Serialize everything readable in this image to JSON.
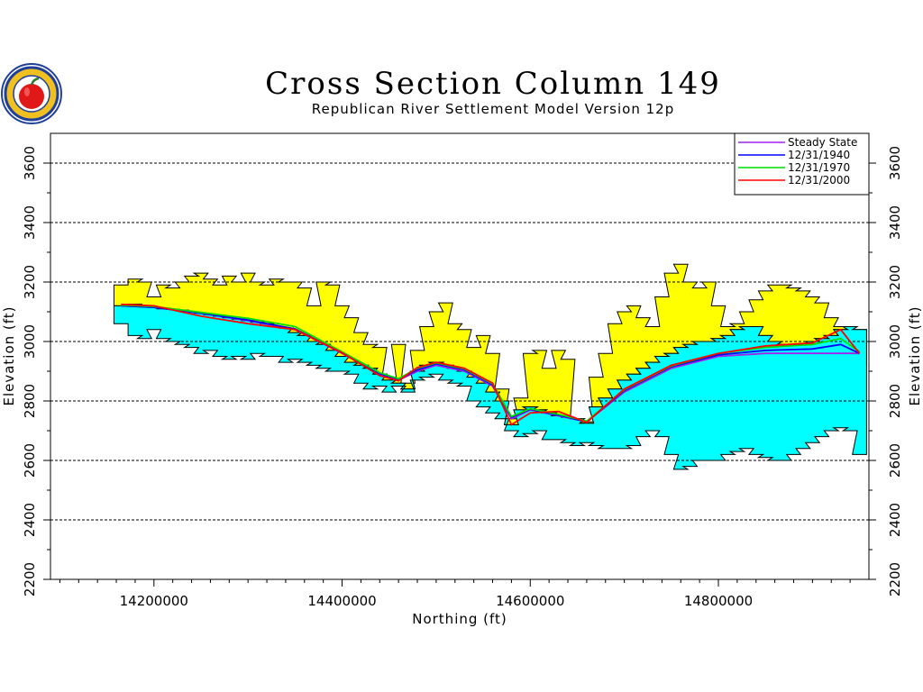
{
  "colors": {
    "aquifer_fill": "#00ffff",
    "ground_fill": "#ffff00",
    "outline": "#000000",
    "grid": "#000000",
    "steady_state": "#a020f0",
    "y1940": "#0000ff",
    "y1970": "#00dd00",
    "y2000": "#ff0000",
    "logo_blue": "#1f3f99",
    "logo_gold": "#f0c020",
    "logo_red": "#e01818"
  },
  "logo": {
    "icon": "state-seal-apple-icon"
  },
  "chart_data": {
    "type": "area",
    "title": "Cross Section Column 149",
    "subtitle": "Republican River Settlement Model Version 12p",
    "xlabel": "Northing (ft)",
    "ylabel": "Elevation (ft)",
    "ylabel_right": "Elevation (ft)",
    "xlim": [
      14090000,
      14960000
    ],
    "ylim": [
      2200,
      3700
    ],
    "x_ticks": [
      14200000,
      14400000,
      14600000,
      14800000
    ],
    "x_tick_labels": [
      "14200000",
      "14400000",
      "14600000",
      "14800000"
    ],
    "y_ticks": [
      2200,
      2400,
      2600,
      2800,
      3000,
      3200,
      3400,
      3600
    ],
    "y_tick_labels": [
      "2200",
      "2400",
      "2600",
      "2800",
      "3000",
      "3200",
      "3400",
      "3600"
    ],
    "grid": "dashed horizontal at major y ticks",
    "legend_position": "top-right",
    "layers": {
      "land_surface": {
        "x": [
          14165000,
          14180000,
          14190000,
          14200000,
          14210000,
          14220000,
          14230000,
          14240000,
          14250000,
          14260000,
          14270000,
          14280000,
          14290000,
          14300000,
          14310000,
          14320000,
          14330000,
          14340000,
          14350000,
          14360000,
          14370000,
          14380000,
          14390000,
          14400000,
          14410000,
          14420000,
          14430000,
          14440000,
          14450000,
          14460000,
          14470000,
          14480000,
          14490000,
          14500000,
          14510000,
          14520000,
          14530000,
          14540000,
          14550000,
          14560000,
          14570000,
          14580000,
          14590000,
          14600000,
          14610000,
          14620000,
          14630000,
          14640000,
          14650000,
          14660000,
          14670000,
          14680000,
          14690000,
          14700000,
          14710000,
          14720000,
          14730000,
          14740000,
          14750000,
          14760000,
          14770000,
          14780000,
          14790000,
          14800000,
          14810000,
          14820000,
          14830000,
          14840000,
          14850000,
          14860000,
          14870000,
          14880000,
          14890000,
          14900000,
          14910000,
          14920000,
          14930000,
          14940000,
          14950000
        ],
        "y": [
          3190,
          3210,
          3200,
          3150,
          3190,
          3180,
          3200,
          3220,
          3230,
          3210,
          3190,
          3220,
          3200,
          3230,
          3200,
          3190,
          3210,
          3200,
          3200,
          3180,
          3120,
          3200,
          3190,
          3120,
          3080,
          3030,
          2990,
          2980,
          2880,
          2990,
          2860,
          2970,
          3050,
          3100,
          3130,
          3060,
          3040,
          2980,
          3020,
          2960,
          2840,
          2740,
          2810,
          2960,
          2970,
          2910,
          2970,
          2940,
          2740,
          2730,
          2880,
          2960,
          3060,
          3100,
          3120,
          3080,
          3050,
          3150,
          3230,
          3260,
          3200,
          3180,
          3200,
          3120,
          3050,
          3060,
          3100,
          3140,
          3170,
          3190,
          3190,
          3180,
          3170,
          3150,
          3130,
          3080,
          3050,
          2990,
          2920
        ]
      },
      "aquifer_top": {
        "x": [
          14165000,
          14180000,
          14190000,
          14200000,
          14210000,
          14220000,
          14230000,
          14240000,
          14250000,
          14260000,
          14270000,
          14280000,
          14290000,
          14300000,
          14310000,
          14320000,
          14330000,
          14340000,
          14350000,
          14360000,
          14370000,
          14380000,
          14390000,
          14400000,
          14410000,
          14420000,
          14430000,
          14440000,
          14450000,
          14460000,
          14470000,
          14480000,
          14490000,
          14500000,
          14510000,
          14520000,
          14530000,
          14540000,
          14550000,
          14560000,
          14570000,
          14580000,
          14590000,
          14600000,
          14610000,
          14620000,
          14630000,
          14640000,
          14650000,
          14660000,
          14670000,
          14680000,
          14690000,
          14700000,
          14710000,
          14720000,
          14730000,
          14740000,
          14750000,
          14760000,
          14770000,
          14780000,
          14790000,
          14800000,
          14810000,
          14820000,
          14830000,
          14840000,
          14850000,
          14860000,
          14870000,
          14880000,
          14890000,
          14900000,
          14910000,
          14920000,
          14930000,
          14940000,
          14950000
        ],
        "y": [
          3120,
          3125,
          3120,
          3115,
          3110,
          3108,
          3105,
          3100,
          3095,
          3090,
          3085,
          3080,
          3075,
          3070,
          3065,
          3060,
          3050,
          3045,
          3030,
          3020,
          3000,
          2990,
          2970,
          2950,
          2930,
          2920,
          2910,
          2890,
          2870,
          2860,
          2840,
          2900,
          2920,
          2930,
          2920,
          2910,
          2900,
          2880,
          2860,
          2830,
          2800,
          2720,
          2770,
          2780,
          2770,
          2760,
          2750,
          2745,
          2740,
          2725,
          2780,
          2810,
          2840,
          2870,
          2890,
          2910,
          2930,
          2950,
          2960,
          2980,
          2990,
          3000,
          3000,
          3010,
          3020,
          3040,
          3050,
          3050,
          3020,
          3000,
          2990,
          2990,
          2990,
          3000,
          3010,
          3020,
          3040,
          3050,
          3040
        ]
      },
      "aquifer_bottom": {
        "x": [
          14165000,
          14180000,
          14190000,
          14200000,
          14210000,
          14220000,
          14230000,
          14240000,
          14250000,
          14260000,
          14270000,
          14280000,
          14290000,
          14300000,
          14310000,
          14320000,
          14330000,
          14340000,
          14350000,
          14360000,
          14370000,
          14380000,
          14390000,
          14400000,
          14410000,
          14420000,
          14430000,
          14440000,
          14450000,
          14460000,
          14470000,
          14480000,
          14490000,
          14500000,
          14510000,
          14520000,
          14530000,
          14540000,
          14550000,
          14560000,
          14570000,
          14580000,
          14590000,
          14600000,
          14610000,
          14620000,
          14630000,
          14640000,
          14650000,
          14660000,
          14670000,
          14680000,
          14690000,
          14700000,
          14710000,
          14720000,
          14730000,
          14740000,
          14750000,
          14760000,
          14770000,
          14780000,
          14790000,
          14800000,
          14810000,
          14820000,
          14830000,
          14840000,
          14850000,
          14860000,
          14870000,
          14880000,
          14890000,
          14900000,
          14910000,
          14920000,
          14930000,
          14940000,
          14950000
        ],
        "y": [
          3060,
          3020,
          3010,
          3040,
          3010,
          3000,
          2990,
          2980,
          2960,
          2970,
          2950,
          2940,
          2950,
          2940,
          2960,
          2950,
          2950,
          2930,
          2940,
          2930,
          2920,
          2910,
          2900,
          2900,
          2890,
          2860,
          2840,
          2850,
          2830,
          2850,
          2830,
          2870,
          2880,
          2890,
          2870,
          2860,
          2850,
          2800,
          2780,
          2760,
          2740,
          2700,
          2680,
          2690,
          2700,
          2670,
          2670,
          2660,
          2650,
          2660,
          2650,
          2640,
          2640,
          2640,
          2650,
          2680,
          2700,
          2680,
          2620,
          2570,
          2580,
          2600,
          2600,
          2600,
          2620,
          2630,
          2640,
          2620,
          2610,
          2600,
          2600,
          2620,
          2640,
          2660,
          2680,
          2700,
          2710,
          2700,
          2620
        ]
      }
    },
    "series": [
      {
        "name": "Steady State",
        "color_key": "steady_state",
        "x": [
          14165000,
          14200000,
          14250000,
          14300000,
          14350000,
          14400000,
          14440000,
          14460000,
          14480000,
          14500000,
          14530000,
          14560000,
          14580000,
          14600000,
          14630000,
          14660000,
          14700000,
          14750000,
          14800000,
          14850000,
          14900000,
          14930000,
          14950000
        ],
        "y": [
          3120,
          3115,
          3095,
          3070,
          3040,
          2960,
          2890,
          2870,
          2900,
          2920,
          2900,
          2850,
          2740,
          2770,
          2750,
          2730,
          2830,
          2910,
          2950,
          2960,
          2960,
          2960,
          2960
        ]
      },
      {
        "name": "12/31/1940",
        "color_key": "y1940",
        "x": [
          14165000,
          14200000,
          14250000,
          14300000,
          14350000,
          14400000,
          14440000,
          14460000,
          14480000,
          14500000,
          14530000,
          14560000,
          14580000,
          14600000,
          14630000,
          14660000,
          14700000,
          14750000,
          14800000,
          14850000,
          14900000,
          14930000,
          14950000
        ],
        "y": [
          3120,
          3115,
          3095,
          3072,
          3042,
          2962,
          2892,
          2872,
          2905,
          2925,
          2905,
          2855,
          2745,
          2772,
          2752,
          2730,
          2835,
          2915,
          2955,
          2970,
          2975,
          2990,
          2960
        ]
      },
      {
        "name": "12/31/1970",
        "color_key": "y1970",
        "x": [
          14165000,
          14200000,
          14250000,
          14300000,
          14350000,
          14400000,
          14440000,
          14460000,
          14480000,
          14500000,
          14530000,
          14560000,
          14580000,
          14600000,
          14630000,
          14660000,
          14700000,
          14750000,
          14800000,
          14850000,
          14900000,
          14930000,
          14950000
        ],
        "y": [
          3122,
          3118,
          3098,
          3078,
          3050,
          2965,
          2895,
          2875,
          2910,
          2928,
          2908,
          2858,
          2748,
          2774,
          2755,
          2732,
          2838,
          2918,
          2960,
          2980,
          2990,
          3010,
          2965
        ]
      },
      {
        "name": "12/31/2000",
        "color_key": "y2000",
        "x": [
          14165000,
          14200000,
          14250000,
          14300000,
          14350000,
          14400000,
          14440000,
          14460000,
          14480000,
          14500000,
          14530000,
          14560000,
          14580000,
          14600000,
          14630000,
          14660000,
          14700000,
          14750000,
          14800000,
          14850000,
          14900000,
          14930000,
          14950000
        ],
        "y": [
          3125,
          3120,
          3085,
          3060,
          3040,
          2962,
          2885,
          2868,
          2912,
          2930,
          2910,
          2860,
          2720,
          2760,
          2765,
          2728,
          2840,
          2920,
          2960,
          2985,
          2995,
          3040,
          2960
        ]
      }
    ]
  }
}
